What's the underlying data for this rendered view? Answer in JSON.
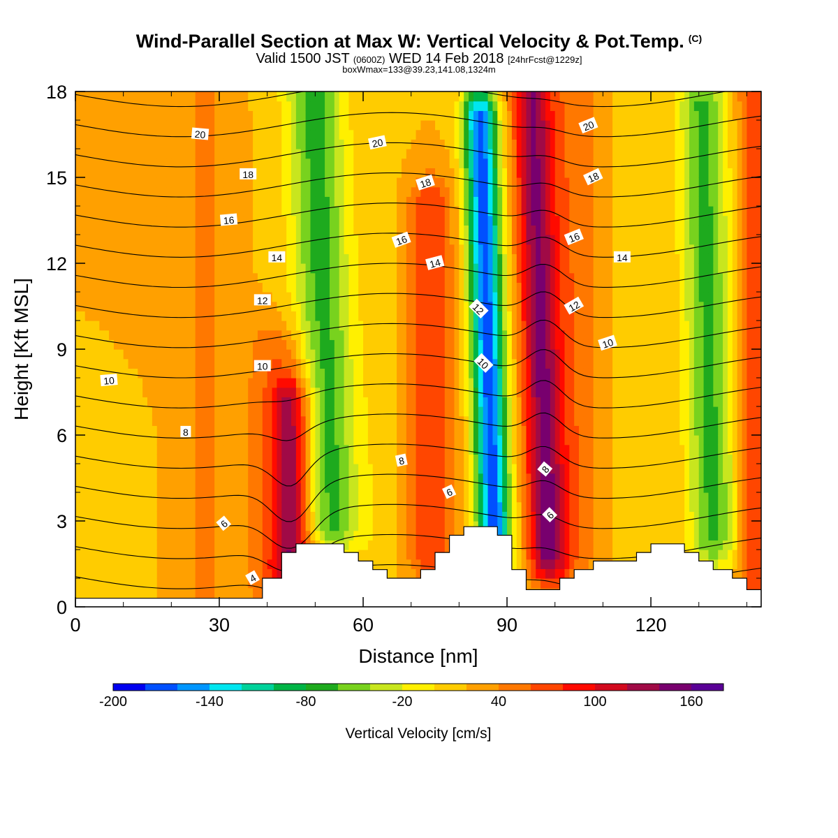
{
  "header": {
    "title": "Wind-Parallel Section at Max W: Vertical Velocity & Pot.Temp.",
    "title_mark": "(C)",
    "valid_prefix": "Valid 1500 JST",
    "valid_utc": "(0600Z)",
    "valid_date": "WED 14 Feb 2018",
    "forecast": "[24hrFcst@1229z]",
    "box_info": "boxWmax=133@39.23,141.08,1324m"
  },
  "chart_data": {
    "type": "heatmap",
    "xlabel": "Distance [nm]",
    "ylabel": "Height [Kft MSL]",
    "xlim": [
      0,
      143
    ],
    "ylim": [
      0,
      18
    ],
    "x_ticks": [
      0,
      30,
      60,
      90,
      120
    ],
    "y_ticks": [
      0,
      3,
      6,
      9,
      12,
      15,
      18
    ],
    "colorbar": {
      "title": "Vertical Velocity [cm/s]",
      "levels": [
        -200,
        -180,
        -160,
        -140,
        -120,
        -100,
        -80,
        -60,
        -40,
        -20,
        0,
        20,
        40,
        60,
        80,
        100,
        120,
        140,
        160
      ],
      "tick_labels": [
        "-200",
        "-140",
        "-80",
        "-20",
        "40",
        "100",
        "160"
      ],
      "tick_values": [
        -200,
        -140,
        -80,
        -20,
        40,
        100,
        160
      ],
      "colors": [
        "#0000f0",
        "#0050ff",
        "#0096ff",
        "#00e6f0",
        "#00d29b",
        "#00b446",
        "#1eaa1e",
        "#78d21e",
        "#c8e61e",
        "#fff000",
        "#ffcc00",
        "#ffa000",
        "#ff7800",
        "#ff4600",
        "#ff0a00",
        "#d20a1e",
        "#a00a46",
        "#78006e",
        "#5a0096"
      ]
    },
    "vertical_velocity_bands": [
      {
        "x": 45,
        "width": 4,
        "peak": 95,
        "zmin": 1.5,
        "zmax": 7
      },
      {
        "x": 42,
        "width": 7,
        "peak": 35,
        "zmin": 0.5,
        "zmax": 9
      },
      {
        "x": 27,
        "width": 5,
        "peak": 22,
        "zmin": 0,
        "zmax": 18
      },
      {
        "x": 11,
        "width": 4,
        "peak": -6,
        "zmin": 0,
        "zmax": 5
      },
      {
        "x": 52,
        "width": 6,
        "peak": -88,
        "zmin": 3,
        "zmax": 18,
        "lean": 0.25
      },
      {
        "x": 74,
        "width": 5,
        "peak": 55,
        "zmin": 2,
        "zmax": 14
      },
      {
        "x": 64,
        "width": 4,
        "peak": -12,
        "zmin": 1,
        "zmax": 18
      },
      {
        "x": 86,
        "width": 3.5,
        "peak": -190,
        "zmin": 2.5,
        "zmax": 17,
        "lean": 0.2
      },
      {
        "x": 97,
        "width": 4,
        "peak": 118,
        "zmin": 2,
        "zmax": 18,
        "lean": 0.2
      },
      {
        "x": 104,
        "width": 6,
        "peak": 35,
        "zmin": 2,
        "zmax": 18
      },
      {
        "x": 111,
        "width": 4,
        "peak": -6,
        "zmin": 1,
        "zmax": 18
      },
      {
        "x": 132,
        "width": 5,
        "peak": -85,
        "zmin": 2.5,
        "zmax": 17.5,
        "lean": 0.15
      },
      {
        "x": 141,
        "width": 3,
        "peak": 55,
        "zmin": 0,
        "zmax": 18
      }
    ],
    "terrain_kft": [
      [
        0,
        0.3
      ],
      [
        39,
        0.3
      ],
      [
        39,
        1
      ],
      [
        43,
        1
      ],
      [
        43,
        1.9
      ],
      [
        46,
        1.9
      ],
      [
        46,
        2.2
      ],
      [
        56,
        2.2
      ],
      [
        56,
        1.9
      ],
      [
        59,
        1.9
      ],
      [
        59,
        1.6
      ],
      [
        62,
        1.6
      ],
      [
        62,
        1.3
      ],
      [
        65,
        1.3
      ],
      [
        65,
        1
      ],
      [
        72,
        1
      ],
      [
        72,
        1.3
      ],
      [
        75,
        1.3
      ],
      [
        75,
        1.9
      ],
      [
        78,
        1.9
      ],
      [
        78,
        2.5
      ],
      [
        81,
        2.5
      ],
      [
        81,
        2.8
      ],
      [
        88,
        2.8
      ],
      [
        88,
        2.5
      ],
      [
        91,
        2.5
      ],
      [
        91,
        1.3
      ],
      [
        94,
        1.3
      ],
      [
        94,
        0.6
      ],
      [
        101,
        0.6
      ],
      [
        101,
        1
      ],
      [
        104,
        1
      ],
      [
        104,
        1.3
      ],
      [
        108,
        1.3
      ],
      [
        108,
        1.6
      ],
      [
        117,
        1.6
      ],
      [
        117,
        1.9
      ],
      [
        120,
        1.9
      ],
      [
        120,
        2.2
      ],
      [
        127,
        2.2
      ],
      [
        127,
        1.9
      ],
      [
        130,
        1.9
      ],
      [
        130,
        1.6
      ],
      [
        133,
        1.6
      ],
      [
        133,
        1.3
      ],
      [
        137,
        1.3
      ],
      [
        137,
        1
      ],
      [
        140,
        1
      ],
      [
        140,
        0.6
      ],
      [
        143,
        0.6
      ]
    ],
    "potential_temperature_contours_c": [
      2,
      4,
      6,
      8,
      10,
      12,
      14,
      16,
      18,
      20
    ],
    "contour_labels": [
      {
        "text": "20",
        "x": 26,
        "y": 16.5,
        "angle": 5
      },
      {
        "text": "20",
        "x": 63,
        "y": 16.2,
        "angle": -12
      },
      {
        "text": "20",
        "x": 107,
        "y": 16.8,
        "angle": -22
      },
      {
        "text": "18",
        "x": 36,
        "y": 15.1,
        "angle": 0
      },
      {
        "text": "18",
        "x": 73,
        "y": 14.8,
        "angle": -18
      },
      {
        "text": "18",
        "x": 108,
        "y": 15,
        "angle": -25
      },
      {
        "text": "16",
        "x": 32,
        "y": 13.5,
        "angle": -5
      },
      {
        "text": "16",
        "x": 68,
        "y": 12.8,
        "angle": -20
      },
      {
        "text": "16",
        "x": 104,
        "y": 12.9,
        "angle": -22
      },
      {
        "text": "14",
        "x": 42,
        "y": 12.2,
        "angle": 0
      },
      {
        "text": "14",
        "x": 75,
        "y": 12,
        "angle": -15
      },
      {
        "text": "14",
        "x": 114,
        "y": 12.2,
        "angle": 0
      },
      {
        "text": "12",
        "x": 39,
        "y": 10.7,
        "angle": 0
      },
      {
        "text": "12",
        "x": 84,
        "y": 10.4,
        "angle": 45
      },
      {
        "text": "12",
        "x": 104,
        "y": 10.5,
        "angle": -30
      },
      {
        "text": "10",
        "x": 7,
        "y": 7.9,
        "angle": -5
      },
      {
        "text": "10",
        "x": 39,
        "y": 8.4,
        "angle": 0
      },
      {
        "text": "10",
        "x": 85,
        "y": 8.5,
        "angle": 45
      },
      {
        "text": "10",
        "x": 111,
        "y": 9.2,
        "angle": -18
      },
      {
        "text": "8",
        "x": 23,
        "y": 6.1,
        "angle": 0
      },
      {
        "text": "8",
        "x": 68,
        "y": 5.1,
        "angle": -12
      },
      {
        "text": "8",
        "x": 98,
        "y": 4.8,
        "angle": -50
      },
      {
        "text": "6",
        "x": 31,
        "y": 2.9,
        "angle": -40
      },
      {
        "text": "6",
        "x": 78,
        "y": 4,
        "angle": -25
      },
      {
        "text": "6",
        "x": 99,
        "y": 3.2,
        "angle": -45
      },
      {
        "text": "4",
        "x": 37,
        "y": 1,
        "angle": -30
      }
    ]
  }
}
